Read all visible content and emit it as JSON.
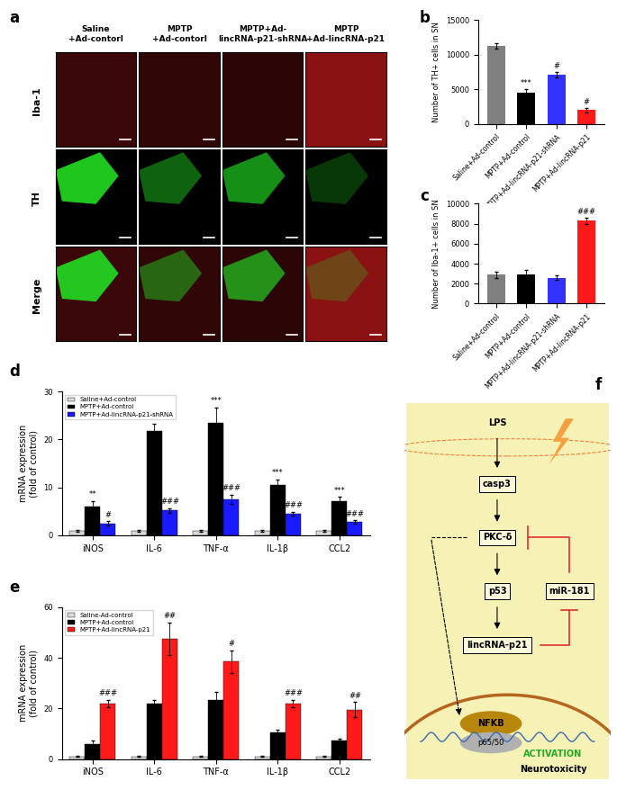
{
  "chart_data": [
    {
      "type": "bar",
      "panel_label": "b",
      "categories": [
        "Saline+Ad-control",
        "MPTP+Ad-control",
        "MPTP+Ad-lincRNA-p21-shRNA",
        "MPTP+Ad-lincRNA-p21"
      ],
      "values": [
        11300,
        4500,
        7100,
        2000
      ],
      "errors": [
        400,
        500,
        400,
        300
      ],
      "significance": [
        null,
        "***",
        "#",
        "#"
      ],
      "colors": [
        "#808080",
        "#000000",
        "#3333ff",
        "#ff1a1a"
      ],
      "y_label": "Number of TH+ cells in SN",
      "ylim": [
        0,
        15000
      ],
      "yticks": [
        0,
        5000,
        10000,
        15000
      ]
    },
    {
      "type": "bar",
      "panel_label": "c",
      "categories": [
        "Saline+Ad-control",
        "MPTP+Ad-control",
        "MPTP+Ad-lincRNA-p21-shRNA",
        "MPTP+Ad-lincRNA-p21"
      ],
      "values": [
        2900,
        2900,
        2600,
        8300
      ],
      "errors": [
        300,
        500,
        200,
        300
      ],
      "significance": [
        null,
        null,
        null,
        "###"
      ],
      "colors": [
        "#808080",
        "#000000",
        "#3333ff",
        "#ff1a1a"
      ],
      "y_label": "Number of Iba-1+ cells in SN",
      "ylim": [
        0,
        10000
      ],
      "yticks": [
        0,
        2000,
        4000,
        6000,
        8000,
        10000
      ]
    },
    {
      "type": "bar",
      "panel_label": "d",
      "categories": [
        "iNOS",
        "IL-6",
        "TNF-α",
        "IL-1β",
        "CCL2"
      ],
      "series": [
        {
          "name": "Saline+Ad-control",
          "color": "#d9d9d9",
          "values": [
            1,
            1,
            1,
            1,
            1
          ],
          "errors": [
            0.2,
            0.2,
            0.2,
            0.2,
            0.2
          ],
          "significance": [
            null,
            null,
            null,
            null,
            null
          ]
        },
        {
          "name": "MPTP+Ad-control",
          "color": "#000000",
          "values": [
            6,
            21.8,
            23.5,
            10.5,
            7.2
          ],
          "errors": [
            1.2,
            1.5,
            3.2,
            1.2,
            0.8
          ],
          "significance": [
            "**",
            "***",
            "***",
            "***",
            "***"
          ]
        },
        {
          "name": "MPTP+Ad-lincRNA-p21-shRNA",
          "color": "#1a1aff",
          "values": [
            2.5,
            5.2,
            7.5,
            4.5,
            2.8
          ],
          "errors": [
            0.5,
            0.5,
            1.0,
            0.4,
            0.3
          ],
          "significance": [
            "#",
            "###",
            "###",
            "###",
            "###"
          ]
        }
      ],
      "y_label": "mRNA expression\n(fold of control)",
      "ylim": [
        0,
        30
      ],
      "yticks": [
        0,
        10,
        20,
        30
      ],
      "legend": "upper left"
    },
    {
      "type": "bar",
      "panel_label": "e",
      "categories": [
        "iNOS",
        "IL-6",
        "TNF-α",
        "IL-1β",
        "CCL2"
      ],
      "series": [
        {
          "name": "Saline-Ad-control",
          "color": "#d9d9d9",
          "values": [
            1,
            1,
            1,
            1,
            1
          ],
          "errors": [
            0.2,
            0.2,
            0.2,
            0.2,
            0.2
          ],
          "significance": [
            null,
            null,
            null,
            null,
            null
          ]
        },
        {
          "name": "MPTP+Ad-control",
          "color": "#000000",
          "values": [
            6,
            21.8,
            23.5,
            10.5,
            7.2
          ],
          "errors": [
            1.2,
            1.5,
            3.2,
            1.2,
            0.8
          ],
          "significance": [
            null,
            null,
            null,
            null,
            null
          ]
        },
        {
          "name": "MPTP+Ad-lincRNA-p21",
          "color": "#ff1a1a",
          "values": [
            22,
            47.5,
            38.5,
            22,
            19.5
          ],
          "errors": [
            1.5,
            6.5,
            4.5,
            1.5,
            3.0
          ],
          "significance": [
            "###",
            "##",
            "#",
            "###",
            "##"
          ]
        }
      ],
      "y_label": "mRNA expression\n(fold of control)",
      "ylim": [
        0,
        60
      ],
      "yticks": [
        0,
        20,
        40,
        60
      ],
      "legend": "upper left"
    }
  ],
  "image_panel": {
    "panel_label": "a",
    "columns": [
      "Saline\n+Ad-contorl",
      "MPTP\n+Ad-contorl",
      "MPTP+Ad-\nlincRNA-p21-shRNA",
      "MPTP\n+Ad-lincRNA-p21"
    ],
    "rows": [
      "Iba-1",
      "TH",
      "Merge"
    ]
  },
  "diagram": {
    "panel_label": "f",
    "nodes": [
      "LPS",
      "casp3",
      "PKC-δ",
      "p53",
      "lincRNA-p21",
      "miR-181"
    ],
    "nucleus_labels": [
      "NFKB",
      "p65/50"
    ],
    "activation": "ACTIVATION",
    "outcome": "Neurotoxicity"
  }
}
